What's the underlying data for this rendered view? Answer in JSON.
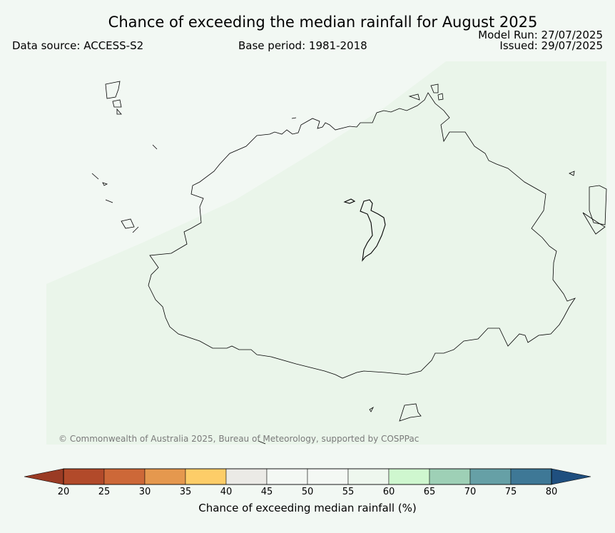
{
  "header": {
    "title": "Chance of exceeding the median rainfall for August 2025",
    "data_source": "Data source: ACCESS-S2",
    "base_period": "Base period: 1981-2018",
    "model_run": "Model Run: 27/07/2025",
    "issued": "Issued: 29/07/2025"
  },
  "map": {
    "copyright": "© Commonwealth of Australia 2025, Bureau of Meteorology, supported by COSPPac",
    "background_color": "#f2f8f3",
    "shading_colors": [
      "#f2f8f3",
      "#eaf5ea"
    ]
  },
  "colorbar": {
    "label": "Chance of exceeding median rainfall (%)",
    "ticks": [
      "20",
      "25",
      "30",
      "35",
      "40",
      "45",
      "50",
      "55",
      "60",
      "65",
      "70",
      "75",
      "80"
    ],
    "colors": [
      "#b24a2a",
      "#cd6838",
      "#e5984e",
      "#fdcd68",
      "#ebeae6",
      "#f4f8f4",
      "#f4f8f4",
      "#eef7ee",
      "#cff7cf",
      "#9ed0b6",
      "#66a0a6",
      "#3e7896"
    ],
    "low_extension_color": "#9a3b24",
    "high_extension_color": "#1f4f7f"
  }
}
